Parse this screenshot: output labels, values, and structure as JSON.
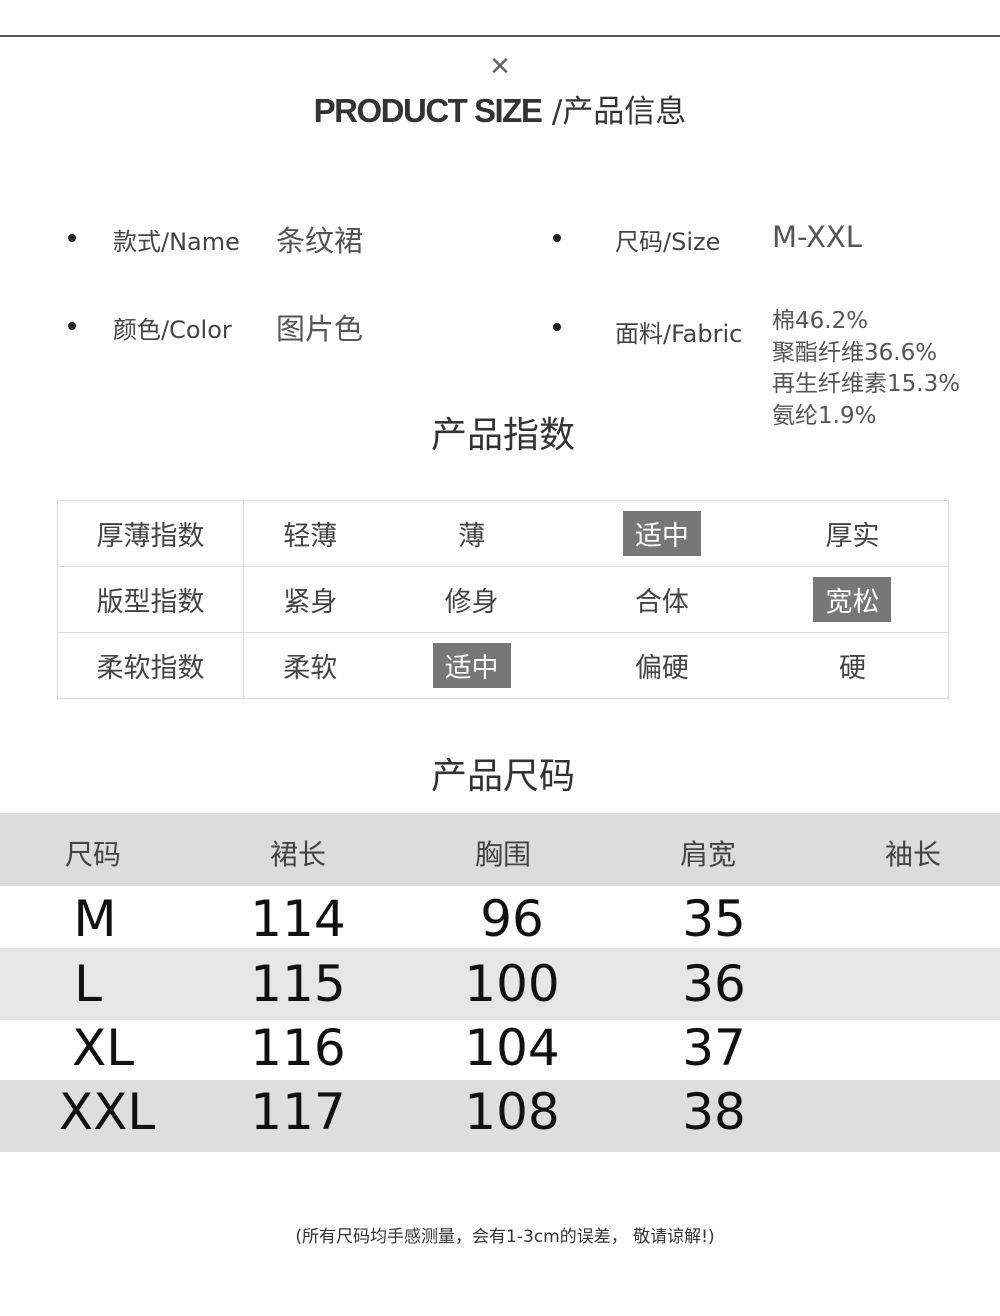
{
  "header": {
    "close_icon": "x-mark",
    "title_en": "PRODUCT SIZE",
    "title_sep": "/",
    "title_cn": "产品信息"
  },
  "info": {
    "name_label": "款式/Name",
    "name_value": "条纹裙",
    "size_label": "尺码/Size",
    "size_value": "M-XXL",
    "color_label": "颜色/Color",
    "color_value": "图片色",
    "fabric_label": "面料/Fabric",
    "fabric_values": [
      "棉46.2%",
      "聚酯纤维36.6%",
      "再生纤维素15.3%",
      "氨纶1.9%"
    ]
  },
  "index_section": {
    "title": "产品指数",
    "highlight_color": "#777777",
    "rows": [
      {
        "label": "厚薄指数",
        "options": [
          "轻薄",
          "薄",
          "适中",
          "厚实"
        ],
        "selected": 2
      },
      {
        "label": "版型指数",
        "options": [
          "紧身",
          "修身",
          "合体",
          "宽松"
        ],
        "selected": 3
      },
      {
        "label": "柔软指数",
        "options": [
          "柔软",
          "适中",
          "偏硬",
          "硬"
        ],
        "selected": 1
      }
    ]
  },
  "size_section": {
    "title": "产品尺码",
    "headers": [
      "尺码",
      "裙长",
      "胸围",
      "肩宽",
      "袖长"
    ],
    "rows": [
      [
        "M",
        "114",
        "96",
        "35",
        ""
      ],
      [
        "L",
        "115",
        "100",
        "36",
        ""
      ],
      [
        "XL",
        "116",
        "104",
        "37",
        ""
      ],
      [
        "XXL",
        "117",
        "108",
        "38",
        ""
      ]
    ]
  },
  "footnote": "(所有尺码均手感测量，会有1-3cm的误差， 敬请谅解!)"
}
